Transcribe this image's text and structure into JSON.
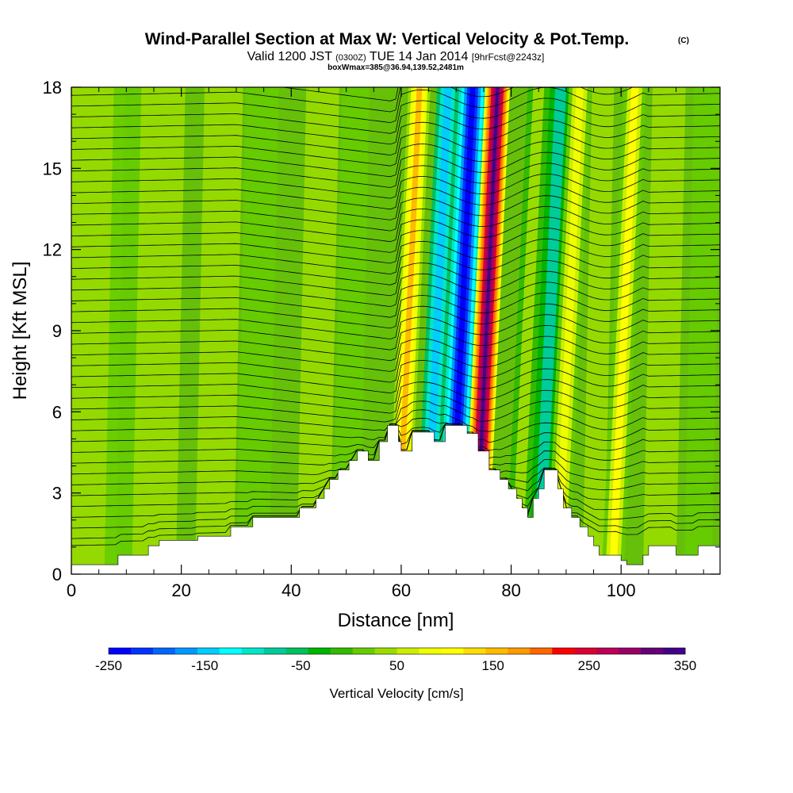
{
  "title": {
    "main": "Wind-Parallel Section at Max W: Vertical Velocity & Pot.Temp.",
    "copyright": "(C)",
    "valid_prefix": "Valid 1200 JST",
    "valid_utc": "(0300Z)",
    "valid_date": "TUE 14 Jan 2014",
    "forecast": "[9hrFcst@2243z]",
    "box_info": "boxWmax=385@36.94,139.52,2481m"
  },
  "chart_data": {
    "type": "heatmap",
    "xlabel": "Distance [nm]",
    "ylabel": "Height [Kft MSL]",
    "xlim": [
      0,
      118
    ],
    "ylim": [
      0,
      18
    ],
    "x_ticks": [
      "0",
      "20",
      "40",
      "60",
      "80",
      "100"
    ],
    "y_ticks": [
      "0",
      "3",
      "6",
      "9",
      "12",
      "15",
      "18"
    ],
    "colorbar": {
      "label": "Vertical Velocity [cm/s]",
      "ticks": [
        "-250",
        "-150",
        "-50",
        "50",
        "150",
        "250",
        "350"
      ],
      "range": [
        -250,
        350
      ],
      "interval": 25,
      "colors": [
        "#0000ff",
        "#0033ff",
        "#0066ff",
        "#0099ff",
        "#00ccff",
        "#00ffff",
        "#00e6c8",
        "#00cc99",
        "#00c060",
        "#00b400",
        "#33bb00",
        "#66cc00",
        "#99dd00",
        "#ccee00",
        "#eeff00",
        "#ffff00",
        "#ffdd00",
        "#ffbb00",
        "#ff9900",
        "#ff6600",
        "#ff0000",
        "#dd0033",
        "#bb0055",
        "#990066",
        "#660077",
        "#440088"
      ]
    },
    "updraft_bands_nm": [
      {
        "x": 61.3,
        "w": 185
      },
      {
        "x": 75.5,
        "w": 385
      },
      {
        "x": 83.0,
        "w": 65
      },
      {
        "x": 90.5,
        "w": 120
      },
      {
        "x": 100.5,
        "w": 140
      }
    ],
    "downdraft_bands_nm": [
      {
        "x": 66.5,
        "w": -135
      },
      {
        "x": 71.0,
        "w": -240
      },
      {
        "x": 87.0,
        "w": -70
      }
    ],
    "terrain_kft": [
      [
        0,
        0.35
      ],
      [
        8.5,
        0.35
      ],
      [
        8.5,
        0.7
      ],
      [
        14,
        0.7
      ],
      [
        14,
        1.05
      ],
      [
        16,
        1.05
      ],
      [
        16,
        1.25
      ],
      [
        23,
        1.25
      ],
      [
        23,
        1.4
      ],
      [
        29,
        1.4
      ],
      [
        29,
        1.75
      ],
      [
        33,
        1.75
      ],
      [
        33,
        2.1
      ],
      [
        41.5,
        2.1
      ],
      [
        41.5,
        2.45
      ],
      [
        44.5,
        2.45
      ],
      [
        44.5,
        2.8
      ],
      [
        46,
        2.8
      ],
      [
        46,
        3.15
      ],
      [
        47,
        3.15
      ],
      [
        47,
        3.5
      ],
      [
        48.5,
        3.5
      ],
      [
        48.5,
        3.85
      ],
      [
        50.5,
        3.85
      ],
      [
        50.5,
        4.2
      ],
      [
        52,
        4.2
      ],
      [
        52,
        4.55
      ],
      [
        54,
        4.55
      ],
      [
        54,
        4.2
      ],
      [
        56,
        4.2
      ],
      [
        56,
        4.9
      ],
      [
        57.5,
        4.9
      ],
      [
        57.5,
        5.5
      ],
      [
        59.5,
        5.5
      ],
      [
        59.5,
        4.9
      ],
      [
        60,
        4.9
      ],
      [
        60,
        4.55
      ],
      [
        62,
        4.55
      ],
      [
        62,
        5.25
      ],
      [
        66,
        5.25
      ],
      [
        66,
        4.9
      ],
      [
        68,
        4.9
      ],
      [
        68,
        5.5
      ],
      [
        72,
        5.5
      ],
      [
        72,
        5.2
      ],
      [
        74,
        5.2
      ],
      [
        74,
        4.55
      ],
      [
        76,
        4.55
      ],
      [
        76,
        3.85
      ],
      [
        78,
        3.85
      ],
      [
        78,
        3.5
      ],
      [
        79.5,
        3.5
      ],
      [
        79.5,
        3.15
      ],
      [
        81,
        3.15
      ],
      [
        81,
        2.8
      ],
      [
        82,
        2.8
      ],
      [
        82,
        2.45
      ],
      [
        83,
        2.45
      ],
      [
        83,
        2.1
      ],
      [
        84,
        2.1
      ],
      [
        84,
        2.8
      ],
      [
        85,
        2.8
      ],
      [
        85,
        3.15
      ],
      [
        86,
        3.15
      ],
      [
        86,
        3.85
      ],
      [
        88.5,
        3.85
      ],
      [
        88.5,
        3.15
      ],
      [
        89.5,
        3.15
      ],
      [
        89.5,
        2.45
      ],
      [
        91,
        2.45
      ],
      [
        91,
        2.1
      ],
      [
        92.5,
        2.1
      ],
      [
        92.5,
        1.75
      ],
      [
        94,
        1.75
      ],
      [
        94,
        1.4
      ],
      [
        95,
        1.4
      ],
      [
        95,
        1.05
      ],
      [
        96,
        1.05
      ],
      [
        96,
        0.7
      ],
      [
        100,
        0.7
      ],
      [
        100,
        0.5
      ],
      [
        101,
        0.5
      ],
      [
        101,
        0.35
      ],
      [
        104,
        0.35
      ],
      [
        104,
        0.7
      ],
      [
        105,
        0.7
      ],
      [
        105,
        1.05
      ],
      [
        110,
        1.05
      ],
      [
        110,
        0.7
      ],
      [
        114,
        0.7
      ],
      [
        114,
        1.05
      ],
      [
        118,
        1.05
      ]
    ]
  }
}
